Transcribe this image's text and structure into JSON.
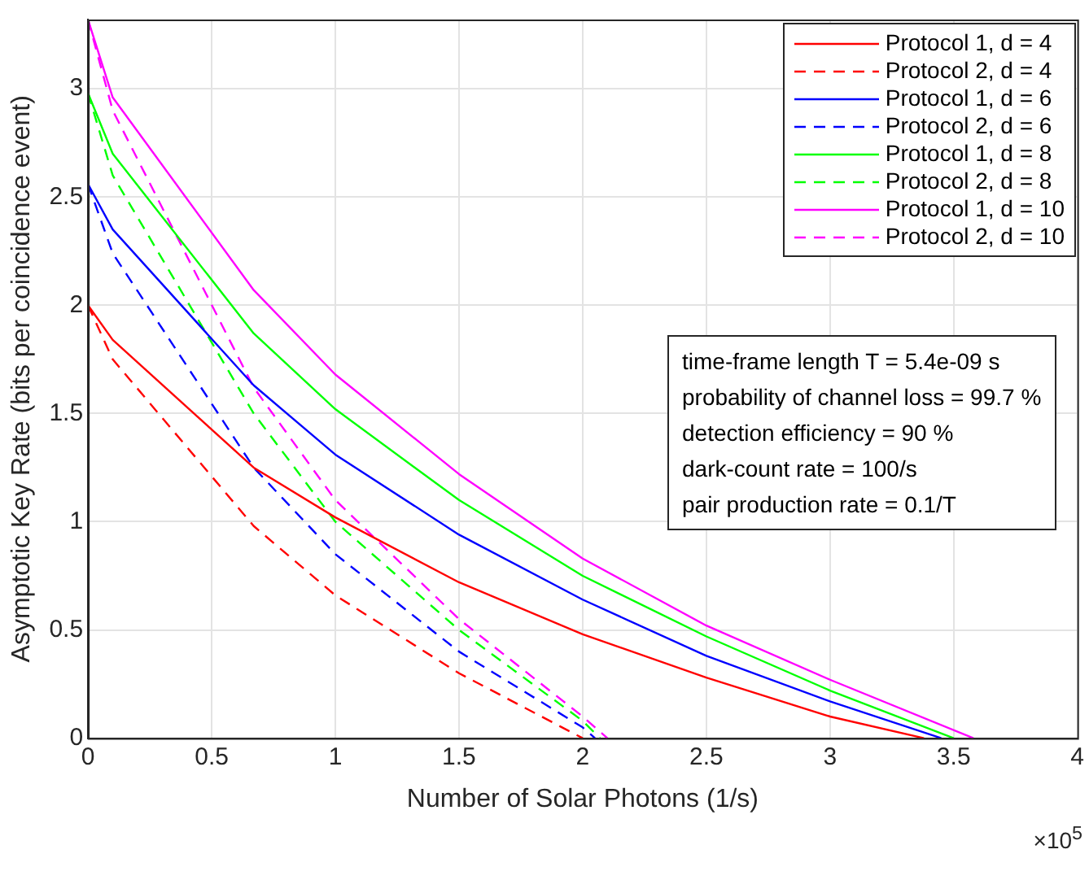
{
  "chart_data": {
    "type": "line",
    "xlabel": "Number of Solar Photons (1/s)",
    "ylabel": "Asymptotic Key Rate (bits per coincidence event)",
    "xlim": [
      0,
      4
    ],
    "xticks": [
      0,
      0.5,
      1,
      1.5,
      2,
      2.5,
      3,
      3.5,
      4
    ],
    "ylim": [
      0,
      3.32
    ],
    "yticks": [
      0,
      0.5,
      1,
      1.5,
      2,
      2.5,
      3
    ],
    "grid": true,
    "legend": "top right",
    "marker": "none",
    "annotations": [
      "time-frame length T = 5.4e-09 s",
      "probability of channel loss = 99.7 %",
      "detection efficiency = 90 %",
      "dark-count rate = 100/s",
      "pair production rate = 0.1/T",
      "×10$^{5}$"
    ],
    "series": [
      {
        "name": "Protocol 1, d = 4",
        "color": "#ff0000",
        "line_style": "solid",
        "x": [
          0,
          0.1,
          0.67,
          1,
          1.5,
          2,
          2.5,
          3,
          3.38
        ],
        "values": [
          2,
          1.84,
          1.25,
          1.02,
          0.72,
          0.48,
          0.28,
          0.1,
          0
        ]
      },
      {
        "name": "Protocol 2, d = 4",
        "color": "#ff0000",
        "line_style": "dashed",
        "x": [
          0,
          0.1,
          0.67,
          1,
          1.5,
          2
        ],
        "values": [
          2,
          1.75,
          0.98,
          0.66,
          0.3,
          0
        ]
      },
      {
        "name": "Protocol 1, d = 6",
        "color": "#0000ff",
        "line_style": "solid",
        "x": [
          0,
          0.1,
          0.67,
          1,
          1.5,
          2,
          2.5,
          3,
          3.45
        ],
        "values": [
          2.56,
          2.35,
          1.63,
          1.31,
          0.94,
          0.64,
          0.38,
          0.17,
          0
        ]
      },
      {
        "name": "Protocol 2, d = 6",
        "color": "#0000ff",
        "line_style": "dashed",
        "x": [
          0,
          0.1,
          0.67,
          1,
          1.5,
          2,
          2.05
        ],
        "values": [
          2.56,
          2.24,
          1.25,
          0.85,
          0.4,
          0.05,
          0
        ]
      },
      {
        "name": "Protocol 1, d = 8",
        "color": "#00ff00",
        "line_style": "solid",
        "x": [
          0,
          0.1,
          0.67,
          1,
          1.5,
          2,
          2.5,
          3,
          3.5
        ],
        "values": [
          2.98,
          2.7,
          1.87,
          1.52,
          1.1,
          0.75,
          0.47,
          0.22,
          0
        ]
      },
      {
        "name": "Protocol 2, d = 8",
        "color": "#00ff00",
        "line_style": "dashed",
        "x": [
          0,
          0.1,
          0.67,
          1,
          1.5,
          2,
          2.07
        ],
        "values": [
          2.98,
          2.6,
          1.5,
          1,
          0.5,
          0.08,
          0
        ]
      },
      {
        "name": "Protocol 1, d = 10",
        "color": "#ff00ff",
        "line_style": "solid",
        "x": [
          0,
          0.1,
          0.67,
          1,
          1.5,
          2,
          2.5,
          3,
          3.58
        ],
        "values": [
          3.32,
          2.96,
          2.07,
          1.68,
          1.22,
          0.83,
          0.52,
          0.27,
          0
        ]
      },
      {
        "name": "Protocol 2, d = 10",
        "color": "#ff00ff",
        "line_style": "dashed",
        "x": [
          0,
          0.1,
          0.67,
          1,
          1.5,
          2,
          2.1
        ],
        "values": [
          3.32,
          2.9,
          1.62,
          1.1,
          0.55,
          0.1,
          0
        ]
      }
    ]
  }
}
